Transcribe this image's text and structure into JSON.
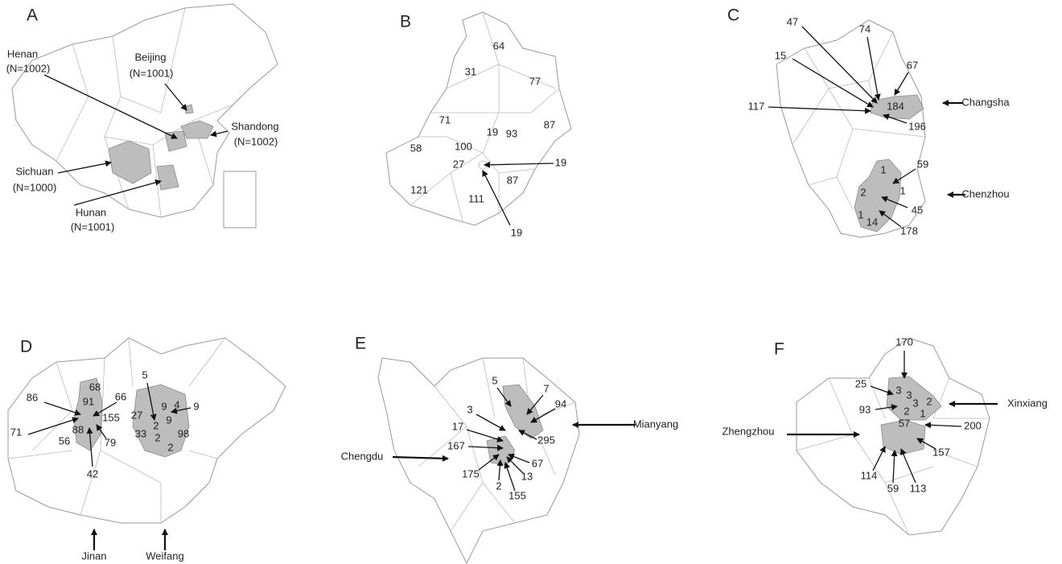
{
  "panels": [
    {
      "letter": "A",
      "labels": [
        "Henan",
        "(N=1002)",
        "Beijing",
        "(N=1001)",
        "Shandong",
        "(N=1002)",
        "Sichuan",
        "(N=1000)",
        "Hunan",
        "(N=1001)"
      ]
    },
    {
      "letter": "B",
      "labels": [
        64,
        31,
        77,
        71,
        93,
        87,
        58,
        100,
        19,
        27,
        19,
        121,
        111,
        87,
        19
      ]
    },
    {
      "letter": "C",
      "labels": [
        47,
        74,
        15,
        67,
        117,
        184,
        196,
        "Changsha",
        1,
        59,
        2,
        1,
        1,
        14,
        45,
        178,
        "Chenzhou"
      ]
    },
    {
      "letter": "D",
      "labels": [
        68,
        86,
        91,
        66,
        155,
        71,
        88,
        56,
        79,
        42,
        5,
        9,
        4,
        9,
        27,
        2,
        9,
        33,
        2,
        98,
        2,
        "Jinan",
        "Weifang"
      ]
    },
    {
      "letter": "E",
      "labels": [
        5,
        7,
        94,
        3,
        17,
        295,
        167,
        67,
        175,
        13,
        2,
        155,
        "Mianyang",
        "Chengdu"
      ]
    },
    {
      "letter": "F",
      "labels": [
        170,
        25,
        3,
        3,
        3,
        2,
        93,
        2,
        1,
        57,
        200,
        114,
        59,
        113,
        157,
        "Xinxiang",
        "Zhengzhou"
      ]
    }
  ]
}
